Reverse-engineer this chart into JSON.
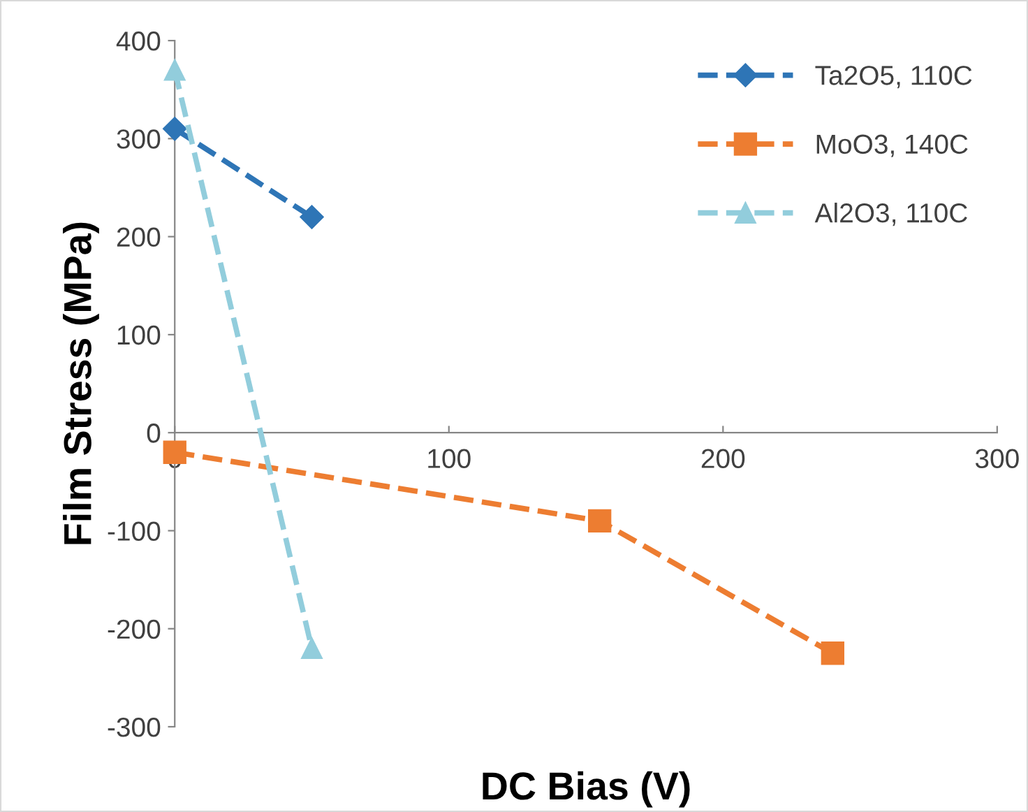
{
  "chart_data": {
    "type": "line",
    "xlabel": "DC Bias (V)",
    "ylabel": "Film Stress (MPa)",
    "xlim": [
      0,
      300
    ],
    "xticks": [
      0,
      100,
      200,
      300
    ],
    "ylim": [
      -300,
      400
    ],
    "yticks": [
      -300,
      -200,
      -100,
      0,
      100,
      200,
      300,
      400
    ],
    "grid": false,
    "legend": "top right",
    "line_style": "dashed",
    "series": [
      {
        "name": "Ta2O5, 110C",
        "color": "#2e75b6",
        "marker": "diamond",
        "x": [
          0,
          50
        ],
        "values": [
          310,
          220
        ]
      },
      {
        "name": "MoO3, 140C",
        "color": "#ed7d31",
        "marker": "square",
        "x": [
          0,
          155,
          240
        ],
        "values": [
          -20,
          -90,
          -225
        ]
      },
      {
        "name": "Al2O3, 110C",
        "color": "#92cddc",
        "marker": "triangle",
        "x": [
          0,
          50
        ],
        "values": [
          370,
          -220
        ]
      }
    ]
  }
}
